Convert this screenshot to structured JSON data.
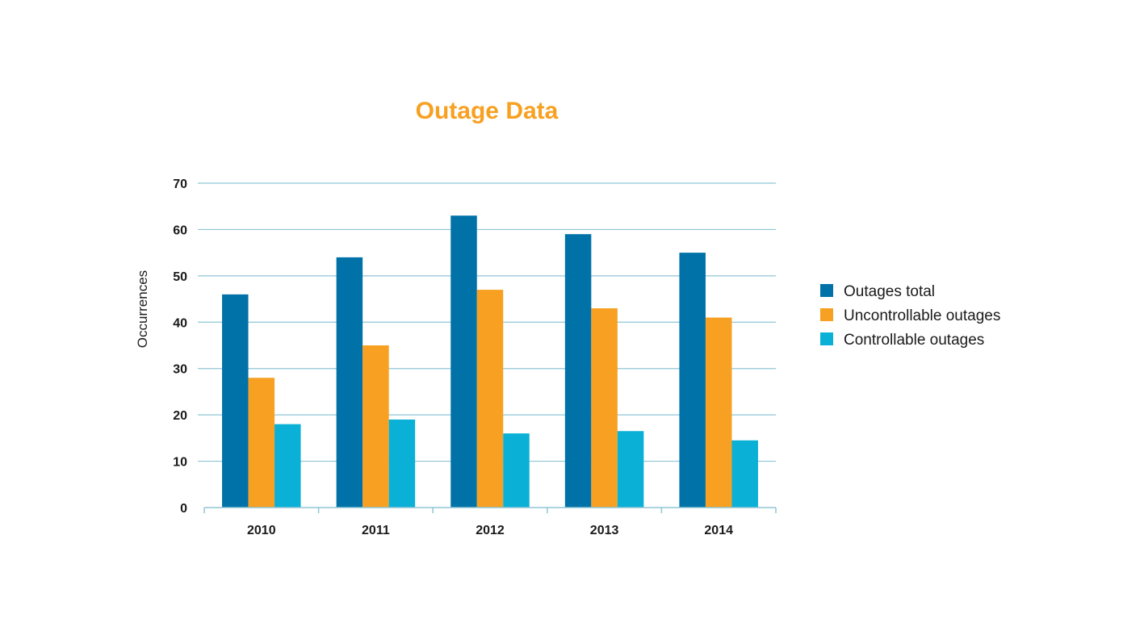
{
  "chart_data": {
    "type": "bar",
    "title": "Outage Data",
    "xlabel": "",
    "ylabel": "Occurrences",
    "categories": [
      "2010",
      "2011",
      "2012",
      "2013",
      "2014"
    ],
    "ylim": [
      0,
      70
    ],
    "yticks": [
      0,
      10,
      20,
      30,
      40,
      50,
      60,
      70
    ],
    "grid": true,
    "legend_position": "right",
    "series": [
      {
        "name": "Outages total",
        "color": "#0072a8",
        "values": [
          46,
          54,
          63,
          59,
          55
        ]
      },
      {
        "name": "Uncontrollable outages",
        "color": "#f7a021",
        "values": [
          28,
          35,
          47,
          43,
          41
        ]
      },
      {
        "name": "Controllable outages",
        "color": "#0ab0d6",
        "values": [
          18,
          19,
          16,
          16.5,
          14.5
        ]
      }
    ],
    "title_color": "#f7a021",
    "grid_color": "#8fc6d6"
  }
}
